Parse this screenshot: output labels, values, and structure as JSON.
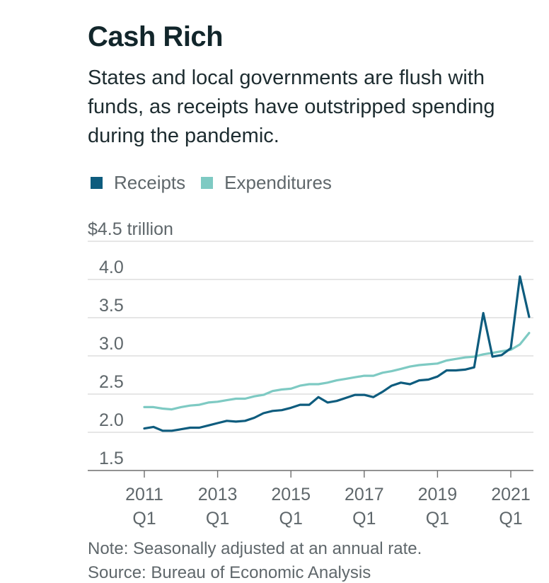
{
  "title": "Cash Rich",
  "subtitle": "States and local governments are flush with funds, as receipts have outstripped spending during the pandemic.",
  "legend": [
    {
      "label": "Receipts",
      "color": "#0e5c7e"
    },
    {
      "label": "Expenditures",
      "color": "#7ecac3"
    }
  ],
  "note": "Note: Seasonally adjusted at an annual rate.",
  "source": "Source: Bureau of Economic Analysis",
  "chart_data": {
    "type": "line",
    "ylabel": "$4.5 trillion",
    "ylim": [
      1.5,
      4.5
    ],
    "yticks": [
      {
        "value": 4.5,
        "label": "$4.5 trillion"
      },
      {
        "value": 4.0,
        "label": "4.0"
      },
      {
        "value": 3.5,
        "label": "3.5"
      },
      {
        "value": 3.0,
        "label": "3.0"
      },
      {
        "value": 2.5,
        "label": "2.5"
      },
      {
        "value": 2.0,
        "label": "2.0"
      },
      {
        "value": 1.5,
        "label": "1.5"
      }
    ],
    "xticks": [
      {
        "year": 2011,
        "line1": "2011",
        "line2": "Q1"
      },
      {
        "year": 2013,
        "line1": "2013",
        "line2": "Q1"
      },
      {
        "year": 2015,
        "line1": "2015",
        "line2": "Q1"
      },
      {
        "year": 2017,
        "line1": "2017",
        "line2": "Q1"
      },
      {
        "year": 2019,
        "line1": "2019",
        "line2": "Q1"
      },
      {
        "year": 2021,
        "line1": "2021",
        "line2": "Q1"
      }
    ],
    "x_start": "2011 Q1",
    "x_end": "2021 Q3",
    "grid": true,
    "legend_position": "top-left",
    "x": [
      "2011 Q1",
      "2011 Q2",
      "2011 Q3",
      "2011 Q4",
      "2012 Q1",
      "2012 Q2",
      "2012 Q3",
      "2012 Q4",
      "2013 Q1",
      "2013 Q2",
      "2013 Q3",
      "2013 Q4",
      "2014 Q1",
      "2014 Q2",
      "2014 Q3",
      "2014 Q4",
      "2015 Q1",
      "2015 Q2",
      "2015 Q3",
      "2015 Q4",
      "2016 Q1",
      "2016 Q2",
      "2016 Q3",
      "2016 Q4",
      "2017 Q1",
      "2017 Q2",
      "2017 Q3",
      "2017 Q4",
      "2018 Q1",
      "2018 Q2",
      "2018 Q3",
      "2018 Q4",
      "2019 Q1",
      "2019 Q2",
      "2019 Q3",
      "2019 Q4",
      "2020 Q1",
      "2020 Q2",
      "2020 Q3",
      "2020 Q4",
      "2021 Q1",
      "2021 Q2",
      "2021 Q3"
    ],
    "series": [
      {
        "name": "Receipts",
        "color": "#0e5c7e",
        "values": [
          2.05,
          2.07,
          2.02,
          2.02,
          2.04,
          2.06,
          2.06,
          2.09,
          2.12,
          2.15,
          2.14,
          2.15,
          2.19,
          2.25,
          2.28,
          2.29,
          2.32,
          2.36,
          2.36,
          2.46,
          2.39,
          2.41,
          2.45,
          2.49,
          2.49,
          2.46,
          2.53,
          2.61,
          2.65,
          2.63,
          2.68,
          2.69,
          2.73,
          2.81,
          2.81,
          2.82,
          2.85,
          3.56,
          2.99,
          3.01,
          3.1,
          4.04,
          3.51
        ]
      },
      {
        "name": "Expenditures",
        "color": "#7ecac3",
        "values": [
          2.33,
          2.33,
          2.31,
          2.3,
          2.33,
          2.35,
          2.36,
          2.39,
          2.4,
          2.42,
          2.44,
          2.44,
          2.47,
          2.49,
          2.54,
          2.56,
          2.57,
          2.61,
          2.63,
          2.63,
          2.65,
          2.68,
          2.7,
          2.72,
          2.74,
          2.74,
          2.78,
          2.8,
          2.83,
          2.86,
          2.88,
          2.89,
          2.9,
          2.94,
          2.96,
          2.98,
          2.99,
          3.02,
          3.04,
          3.06,
          3.08,
          3.15,
          3.3
        ]
      }
    ]
  }
}
